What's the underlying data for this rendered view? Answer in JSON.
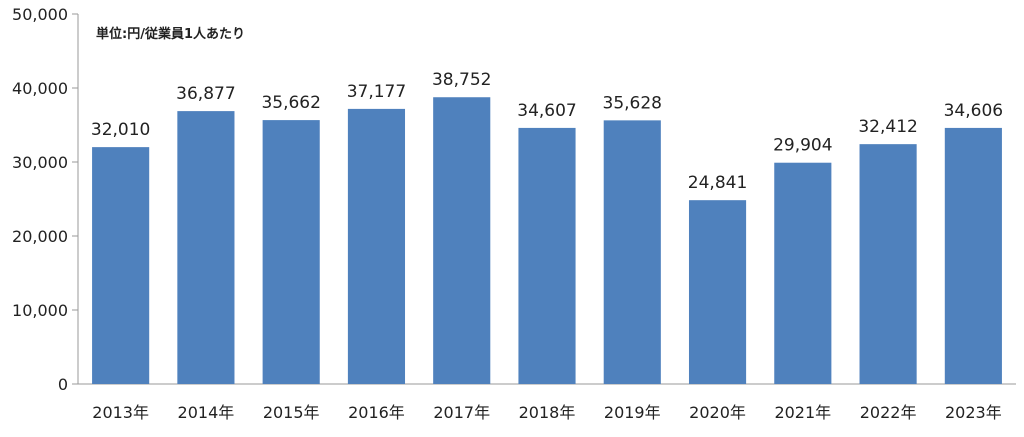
{
  "chart_data": {
    "type": "bar",
    "unit_label": "単位:円/従業員1人あたり",
    "categories": [
      "2013年",
      "2014年",
      "2015年",
      "2016年",
      "2017年",
      "2018年",
      "2019年",
      "2020年",
      "2021年",
      "2022年",
      "2023年"
    ],
    "values": [
      32010,
      36877,
      35662,
      37177,
      38752,
      34607,
      35628,
      24841,
      29904,
      32412,
      34606
    ],
    "data_labels": [
      "32,010",
      "36,877",
      "35,662",
      "37,177",
      "38,752",
      "34,607",
      "35,628",
      "24,841",
      "29,904",
      "32,412",
      "34,606"
    ],
    "ylim": [
      0,
      50000
    ],
    "yticks": [
      0,
      10000,
      20000,
      30000,
      40000,
      50000
    ],
    "ytick_labels": [
      "0",
      "10,000",
      "20,000",
      "30,000",
      "40,000",
      "50,000"
    ],
    "bar_color": "#4f81bd",
    "grid": false
  }
}
